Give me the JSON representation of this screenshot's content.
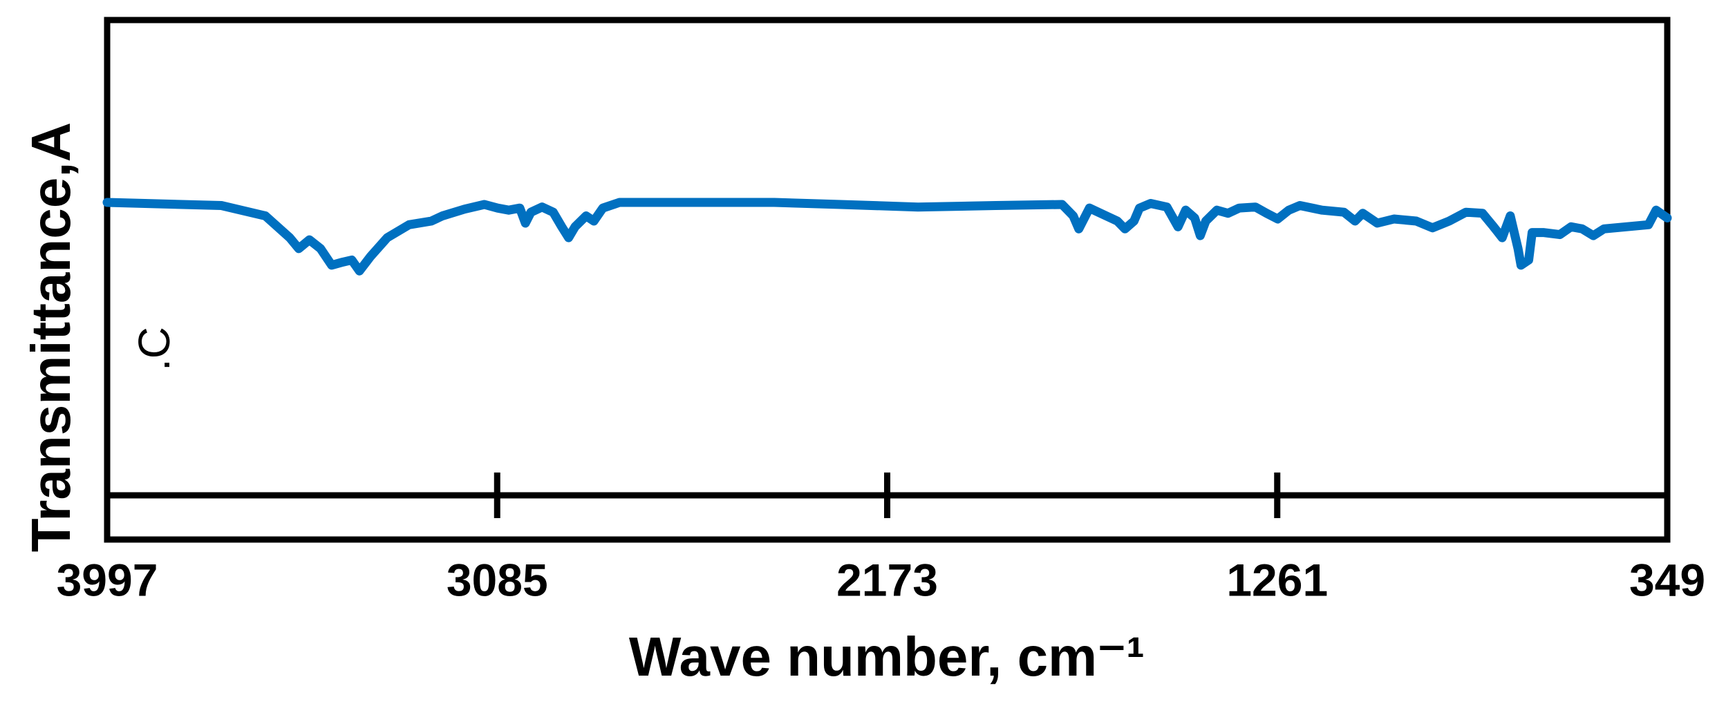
{
  "chart_data": {
    "type": "line",
    "x_label": "Wave number, cm⁻¹",
    "y_label": "Transmittance,A",
    "annotation": ".C",
    "xlim": [
      3997,
      349
    ],
    "xticks": [
      3997,
      3085,
      2173,
      1261,
      349
    ],
    "ylim": [
      0,
      100
    ],
    "series": [
      {
        "color": "#0070c0",
        "x": [
          3997,
          3730,
          3627,
          3570,
          3549,
          3524,
          3498,
          3472,
          3446,
          3425,
          3407,
          3381,
          3342,
          3291,
          3239,
          3213,
          3161,
          3115,
          3084,
          3058,
          3032,
          3019,
          3006,
          2980,
          2954,
          2934,
          2918,
          2903,
          2877,
          2859,
          2838,
          2799,
          2437,
          2282,
          2101,
          1919,
          1764,
          1738,
          1725,
          1700,
          1661,
          1635,
          1617,
          1596,
          1583,
          1557,
          1519,
          1493,
          1475,
          1454,
          1441,
          1428,
          1402,
          1376,
          1350,
          1312,
          1286,
          1260,
          1234,
          1208,
          1156,
          1105,
          1079,
          1061,
          1027,
          988,
          936,
          898,
          859,
          820,
          781,
          755,
          735,
          716,
          698,
          691,
          673,
          665,
          639,
          600,
          574,
          548,
          522,
          497,
          445,
          393,
          375,
          349
        ],
        "values": [
          64.9,
          64.3,
          62.3,
          58.1,
          56.0,
          57.7,
          56.0,
          52.8,
          53.4,
          53.8,
          51.7,
          54.5,
          58.1,
          60.6,
          61.3,
          62.3,
          63.6,
          64.5,
          63.8,
          63.4,
          63.8,
          60.9,
          63.0,
          64.0,
          63.0,
          60.2,
          58.1,
          60.2,
          62.3,
          61.3,
          63.8,
          64.9,
          64.9,
          64.5,
          64.0,
          64.3,
          64.5,
          62.3,
          59.8,
          63.8,
          62.3,
          61.3,
          59.8,
          61.3,
          63.8,
          64.7,
          64.0,
          60.2,
          63.4,
          61.9,
          58.5,
          61.3,
          63.4,
          62.8,
          63.8,
          64.0,
          62.8,
          61.7,
          63.4,
          64.3,
          63.4,
          63.0,
          61.3,
          62.8,
          60.9,
          61.7,
          61.3,
          60.0,
          61.3,
          63.0,
          62.8,
          60.2,
          58.1,
          62.3,
          56.0,
          52.8,
          53.8,
          59.1,
          59.1,
          58.7,
          60.2,
          59.8,
          58.5,
          59.8,
          60.2,
          60.6,
          63.4,
          61.9
        ]
      }
    ]
  }
}
